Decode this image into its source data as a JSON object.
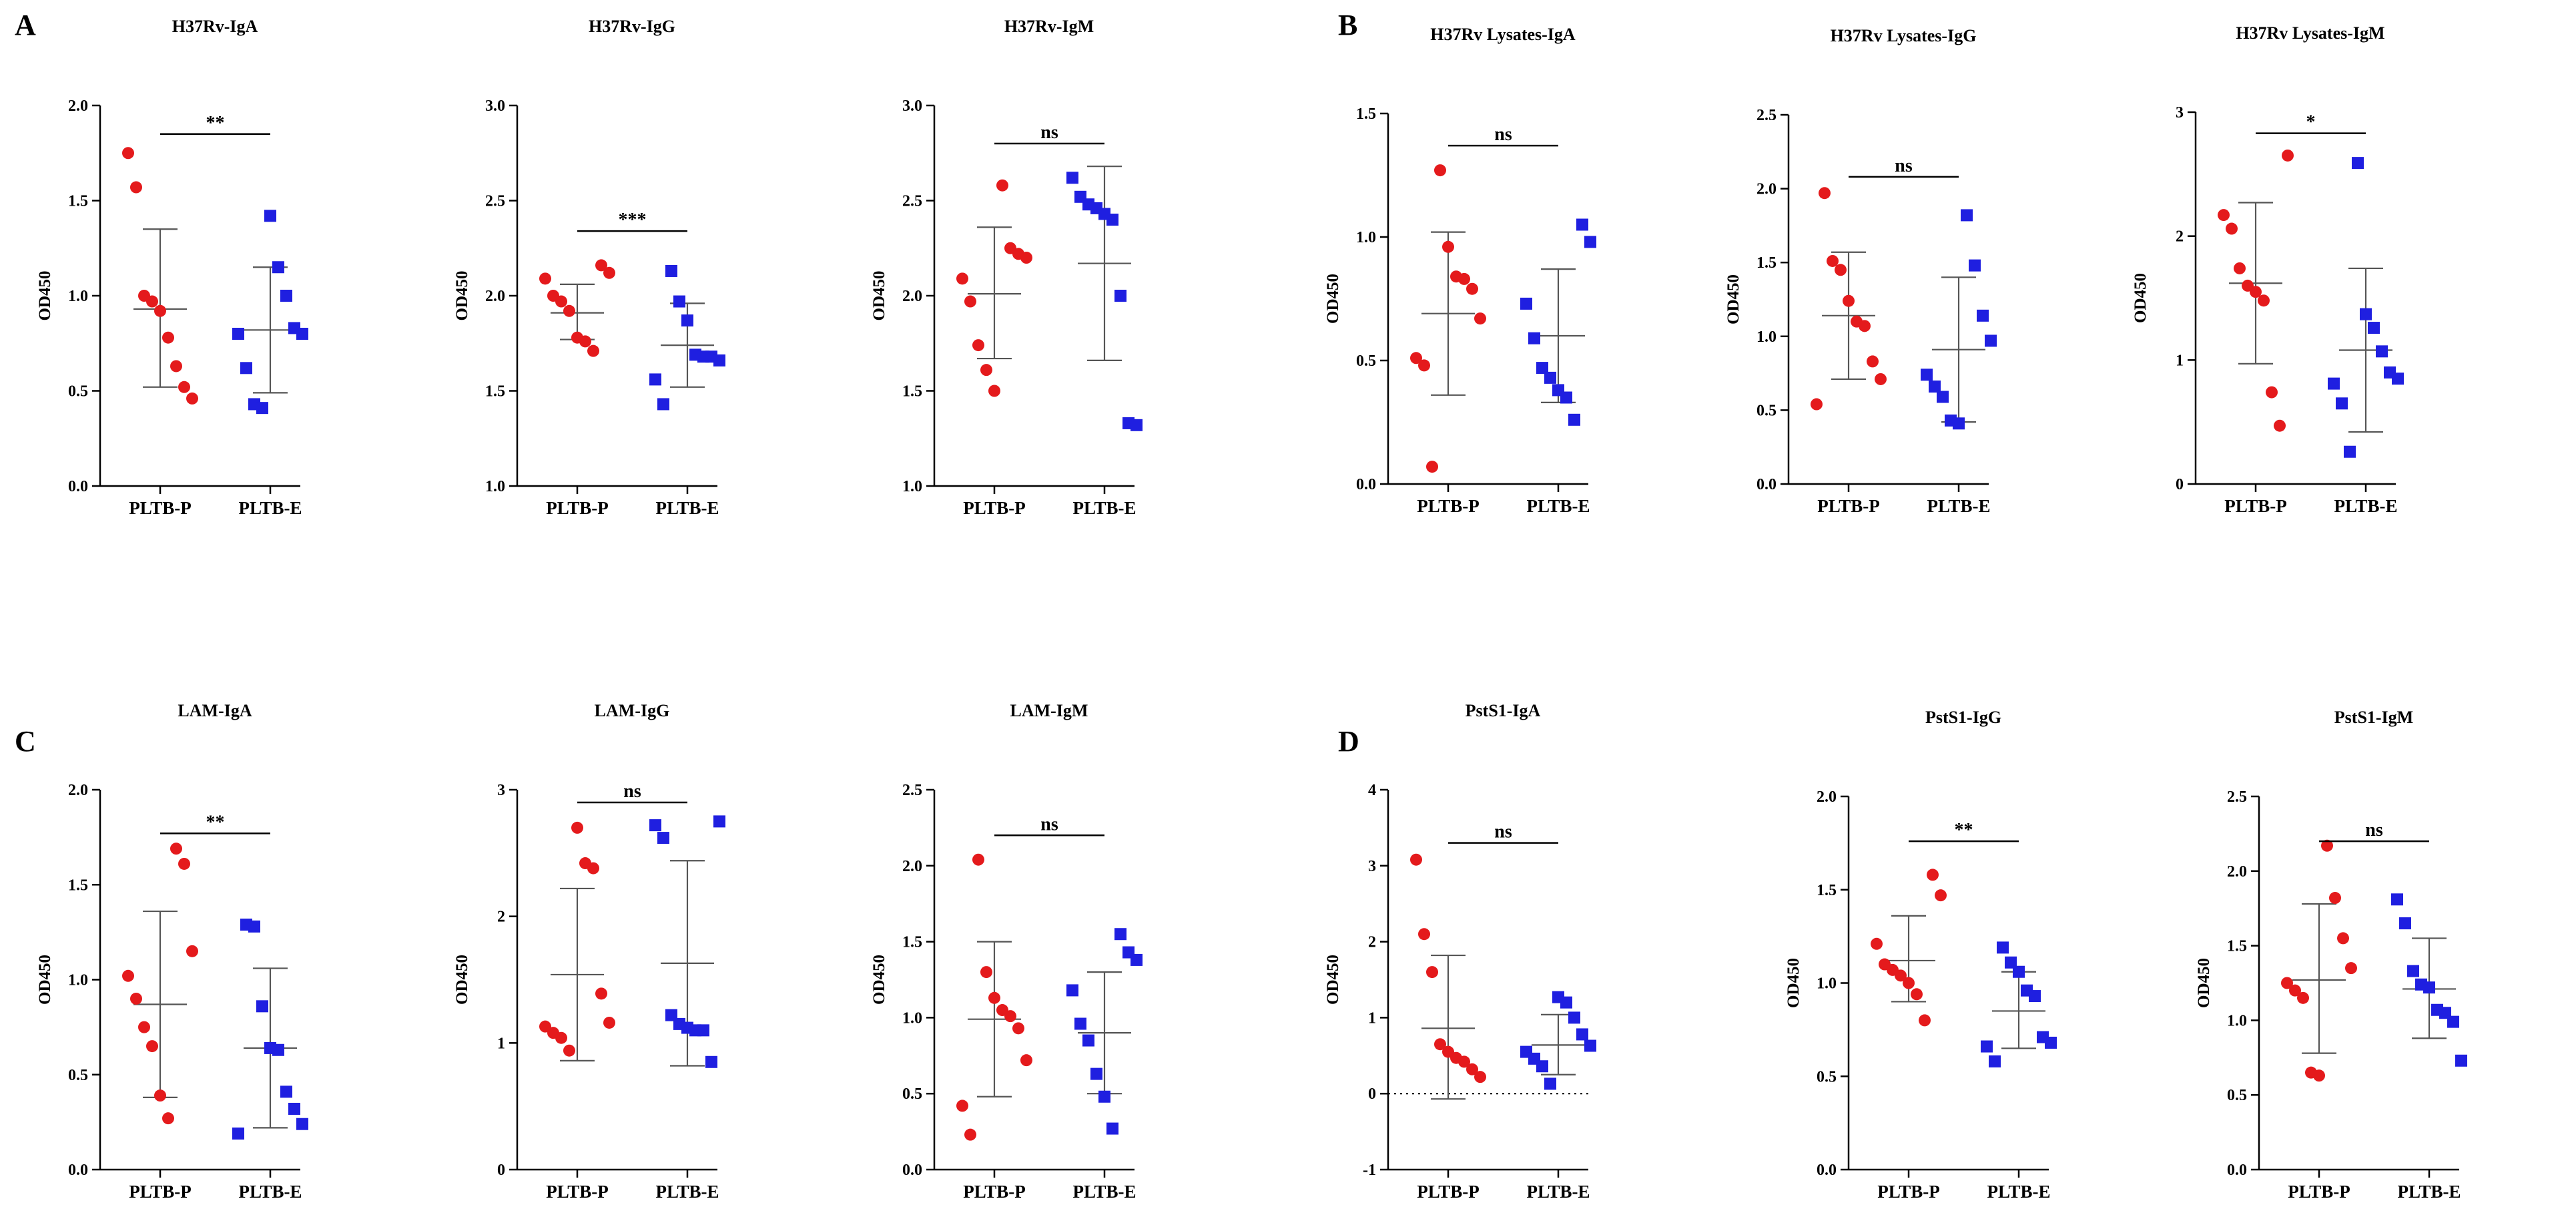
{
  "colors": {
    "group1": "#e41a1c",
    "group2": "#1f1fe0",
    "axis": "#000000",
    "errorbar": "#555555"
  },
  "panel_labels": [
    "A",
    "B",
    "C",
    "D"
  ],
  "chart_data": [
    {
      "type": "scatter",
      "panel": "A",
      "title": "H37Rv-IgA",
      "ylabel": "OD450",
      "ylim": [
        0,
        2
      ],
      "yticks": [
        "0.0",
        "0.5",
        "1.0",
        "1.5",
        "2.0"
      ],
      "categories": [
        "PLTB-P",
        "PLTB-E"
      ],
      "significance": "**",
      "sig_level": 1.85,
      "series": [
        {
          "name": "PLTB-P",
          "marker": "circle",
          "values": [
            1.75,
            1.57,
            1.0,
            0.97,
            0.92,
            0.78,
            0.63,
            0.52,
            0.46
          ],
          "mean": 0.93,
          "sd_upper": 1.35,
          "sd_lower": 0.52
        },
        {
          "name": "PLTB-E",
          "marker": "square",
          "values": [
            1.42,
            1.15,
            1.0,
            0.83,
            0.8,
            0.8,
            0.62,
            0.43,
            0.41
          ],
          "mean": 0.82,
          "sd_upper": 1.15,
          "sd_lower": 0.49
        }
      ]
    },
    {
      "type": "scatter",
      "panel": "A",
      "title": "H37Rv-IgG",
      "ylabel": "OD450",
      "ylim": [
        1,
        3
      ],
      "yticks": [
        "1.0",
        "1.5",
        "2.0",
        "2.5",
        "3.0"
      ],
      "categories": [
        "PLTB-P",
        "PLTB-E"
      ],
      "significance": "***",
      "sig_level": 2.34,
      "series": [
        {
          "name": "PLTB-P",
          "marker": "circle",
          "values": [
            2.16,
            2.12,
            2.09,
            2.0,
            1.97,
            1.92,
            1.78,
            1.76,
            1.71
          ],
          "mean": 1.91,
          "sd_upper": 2.06,
          "sd_lower": 1.77
        },
        {
          "name": "PLTB-E",
          "marker": "square",
          "values": [
            2.13,
            1.97,
            1.87,
            1.69,
            1.68,
            1.68,
            1.66,
            1.56,
            1.43
          ],
          "mean": 1.74,
          "sd_upper": 1.96,
          "sd_lower": 1.52
        }
      ]
    },
    {
      "type": "scatter",
      "panel": "A",
      "title": "H37Rv-IgM",
      "ylabel": "OD450",
      "ylim": [
        1,
        3
      ],
      "yticks": [
        "1.0",
        "1.5",
        "2.0",
        "2.5",
        "3.0"
      ],
      "categories": [
        "PLTB-P",
        "PLTB-E"
      ],
      "significance": "ns",
      "sig_level": 2.8,
      "series": [
        {
          "name": "PLTB-P",
          "marker": "circle",
          "values": [
            2.58,
            2.25,
            2.22,
            2.2,
            2.09,
            1.97,
            1.74,
            1.61,
            1.5
          ],
          "mean": 2.01,
          "sd_upper": 2.36,
          "sd_lower": 1.67
        },
        {
          "name": "PLTB-E",
          "marker": "square",
          "values": [
            2.62,
            2.52,
            2.48,
            2.46,
            2.43,
            2.4,
            2.0,
            1.33,
            1.32
          ],
          "mean": 2.17,
          "sd_upper": 2.68,
          "sd_lower": 1.66
        }
      ]
    },
    {
      "type": "scatter",
      "panel": "B",
      "title": "H37Rv Lysates-IgA",
      "ylabel": "OD450",
      "ylim": [
        0,
        1.5
      ],
      "yticks": [
        "0.0",
        "0.5",
        "1.0",
        "1.5"
      ],
      "categories": [
        "PLTB-P",
        "PLTB-E"
      ],
      "significance": "ns",
      "sig_level": 1.37,
      "series": [
        {
          "name": "PLTB-P",
          "marker": "circle",
          "values": [
            1.27,
            0.96,
            0.84,
            0.83,
            0.79,
            0.67,
            0.51,
            0.48,
            0.07
          ],
          "mean": 0.69,
          "sd_upper": 1.02,
          "sd_lower": 0.36
        },
        {
          "name": "PLTB-E",
          "marker": "square",
          "values": [
            1.05,
            0.98,
            0.73,
            0.59,
            0.47,
            0.43,
            0.38,
            0.35,
            0.26
          ],
          "mean": 0.6,
          "sd_upper": 0.87,
          "sd_lower": 0.33
        }
      ]
    },
    {
      "type": "scatter",
      "panel": "B",
      "title": "H37Rv Lysates-IgG",
      "ylabel": "OD450",
      "ylim": [
        0,
        2.5
      ],
      "yticks": [
        "0.0",
        "0.5",
        "1.0",
        "1.5",
        "2.0",
        "2.5"
      ],
      "categories": [
        "PLTB-P",
        "PLTB-E"
      ],
      "significance": "ns",
      "sig_level": 2.08,
      "series": [
        {
          "name": "PLTB-P",
          "marker": "circle",
          "values": [
            1.97,
            1.51,
            1.45,
            1.24,
            1.1,
            1.07,
            0.83,
            0.71,
            0.54
          ],
          "mean": 1.14,
          "sd_upper": 1.57,
          "sd_lower": 0.71
        },
        {
          "name": "PLTB-E",
          "marker": "square",
          "values": [
            1.82,
            1.48,
            1.14,
            0.97,
            0.74,
            0.66,
            0.59,
            0.43,
            0.41
          ],
          "mean": 0.91,
          "sd_upper": 1.4,
          "sd_lower": 0.42
        }
      ]
    },
    {
      "type": "scatter",
      "panel": "B",
      "title": "H37Rv Lysates-IgM",
      "ylabel": "OD450",
      "ylim": [
        0,
        3
      ],
      "yticks": [
        "0",
        "1",
        "2",
        "3"
      ],
      "categories": [
        "PLTB-P",
        "PLTB-E"
      ],
      "significance": "*",
      "sig_level": 2.83,
      "series": [
        {
          "name": "PLTB-P",
          "marker": "circle",
          "values": [
            2.65,
            2.17,
            2.06,
            1.74,
            1.6,
            1.55,
            1.48,
            0.74,
            0.47
          ],
          "mean": 1.62,
          "sd_upper": 2.27,
          "sd_lower": 0.97
        },
        {
          "name": "PLTB-E",
          "marker": "square",
          "values": [
            2.59,
            1.37,
            1.26,
            1.07,
            0.9,
            0.85,
            0.81,
            0.65,
            0.26
          ],
          "mean": 1.08,
          "sd_upper": 1.74,
          "sd_lower": 0.42
        }
      ]
    },
    {
      "type": "scatter",
      "panel": "C",
      "title": "LAM-IgA",
      "ylabel": "OD450",
      "ylim": [
        0,
        2
      ],
      "yticks": [
        "0.0",
        "0.5",
        "1.0",
        "1.5",
        "2.0"
      ],
      "categories": [
        "PLTB-P",
        "PLTB-E"
      ],
      "significance": "**",
      "sig_level": 1.77,
      "series": [
        {
          "name": "PLTB-P",
          "marker": "circle",
          "values": [
            1.69,
            1.61,
            1.15,
            1.02,
            0.9,
            0.75,
            0.65,
            0.39,
            0.27
          ],
          "mean": 0.87,
          "sd_upper": 1.36,
          "sd_lower": 0.38
        },
        {
          "name": "PLTB-E",
          "marker": "square",
          "values": [
            1.29,
            1.28,
            0.86,
            0.64,
            0.63,
            0.41,
            0.32,
            0.24,
            0.19
          ],
          "mean": 0.64,
          "sd_upper": 1.06,
          "sd_lower": 0.22
        }
      ]
    },
    {
      "type": "scatter",
      "panel": "C",
      "title": "LAM-IgG",
      "ylabel": "OD450",
      "ylim": [
        0,
        3
      ],
      "yticks": [
        "0",
        "1",
        "2",
        "3"
      ],
      "categories": [
        "PLTB-P",
        "PLTB-E"
      ],
      "significance": "ns",
      "sig_level": 2.9,
      "series": [
        {
          "name": "PLTB-P",
          "marker": "circle",
          "values": [
            2.7,
            2.42,
            2.38,
            1.39,
            1.16,
            1.13,
            1.08,
            1.04,
            0.94
          ],
          "mean": 1.54,
          "sd_upper": 2.22,
          "sd_lower": 0.86
        },
        {
          "name": "PLTB-E",
          "marker": "square",
          "values": [
            2.75,
            2.72,
            2.62,
            1.22,
            1.15,
            1.12,
            1.1,
            1.1,
            0.85
          ],
          "mean": 1.63,
          "sd_upper": 2.44,
          "sd_lower": 0.82
        }
      ]
    },
    {
      "type": "scatter",
      "panel": "C",
      "title": "LAM-IgM",
      "ylabel": "OD450",
      "ylim": [
        0,
        2.5
      ],
      "yticks": [
        "0.0",
        "0.5",
        "1.0",
        "1.5",
        "2.0",
        "2.5"
      ],
      "categories": [
        "PLTB-P",
        "PLTB-E"
      ],
      "significance": "ns",
      "sig_level": 2.2,
      "series": [
        {
          "name": "PLTB-P",
          "marker": "circle",
          "values": [
            2.04,
            1.3,
            1.13,
            1.05,
            1.01,
            0.93,
            0.72,
            0.42,
            0.23
          ],
          "mean": 0.99,
          "sd_upper": 1.5,
          "sd_lower": 0.48
        },
        {
          "name": "PLTB-E",
          "marker": "square",
          "values": [
            1.55,
            1.43,
            1.38,
            1.18,
            0.96,
            0.85,
            0.63,
            0.48,
            0.27
          ],
          "mean": 0.9,
          "sd_upper": 1.3,
          "sd_lower": 0.5
        }
      ]
    },
    {
      "type": "scatter",
      "panel": "D",
      "title": "PstS1-IgA",
      "ylabel": "OD450",
      "ylim": [
        -1,
        4
      ],
      "yticks": [
        "-1",
        "0",
        "1",
        "2",
        "3",
        "4"
      ],
      "categories": [
        "PLTB-P",
        "PLTB-E"
      ],
      "significance": "ns",
      "sig_level": 3.3,
      "zero_line": true,
      "series": [
        {
          "name": "PLTB-P",
          "marker": "circle",
          "values": [
            3.08,
            2.1,
            1.6,
            0.65,
            0.55,
            0.47,
            0.42,
            0.32,
            0.22
          ],
          "mean": 0.86,
          "sd_upper": 1.82,
          "sd_lower": -0.07
        },
        {
          "name": "PLTB-E",
          "marker": "square",
          "values": [
            1.27,
            1.2,
            1.0,
            0.78,
            0.63,
            0.55,
            0.46,
            0.36,
            0.13
          ],
          "mean": 0.64,
          "sd_upper": 1.04,
          "sd_lower": 0.25
        }
      ]
    },
    {
      "type": "scatter",
      "panel": "D",
      "title": "PstS1-IgG",
      "ylabel": "OD450",
      "ylim": [
        0,
        2
      ],
      "yticks": [
        "0.0",
        "0.5",
        "1.0",
        "1.5",
        "2.0"
      ],
      "categories": [
        "PLTB-P",
        "PLTB-E"
      ],
      "significance": "**",
      "sig_level": 1.76,
      "series": [
        {
          "name": "PLTB-P",
          "marker": "circle",
          "values": [
            1.58,
            1.47,
            1.21,
            1.1,
            1.07,
            1.04,
            1.0,
            0.94,
            0.8
          ],
          "mean": 1.12,
          "sd_upper": 1.36,
          "sd_lower": 0.9
        },
        {
          "name": "PLTB-E",
          "marker": "square",
          "values": [
            1.19,
            1.11,
            1.06,
            0.96,
            0.93,
            0.71,
            0.68,
            0.66,
            0.58
          ],
          "mean": 0.85,
          "sd_upper": 1.06,
          "sd_lower": 0.65
        }
      ]
    },
    {
      "type": "scatter",
      "panel": "D",
      "title": "PstS1-IgM",
      "ylabel": "OD450",
      "ylim": [
        0,
        2.5
      ],
      "yticks": [
        "0.0",
        "0.5",
        "1.0",
        "1.5",
        "2.0",
        "2.5"
      ],
      "categories": [
        "PLTB-P",
        "PLTB-E"
      ],
      "significance": "ns",
      "sig_level": 2.2,
      "series": [
        {
          "name": "PLTB-P",
          "marker": "circle",
          "values": [
            2.17,
            1.82,
            1.55,
            1.35,
            1.25,
            1.2,
            1.15,
            0.65,
            0.63
          ],
          "mean": 1.27,
          "sd_upper": 1.78,
          "sd_lower": 0.78
        },
        {
          "name": "PLTB-E",
          "marker": "square",
          "values": [
            1.81,
            1.65,
            1.33,
            1.24,
            1.22,
            1.07,
            1.05,
            0.99,
            0.73
          ],
          "mean": 1.21,
          "sd_upper": 1.55,
          "sd_lower": 0.88
        }
      ]
    }
  ]
}
